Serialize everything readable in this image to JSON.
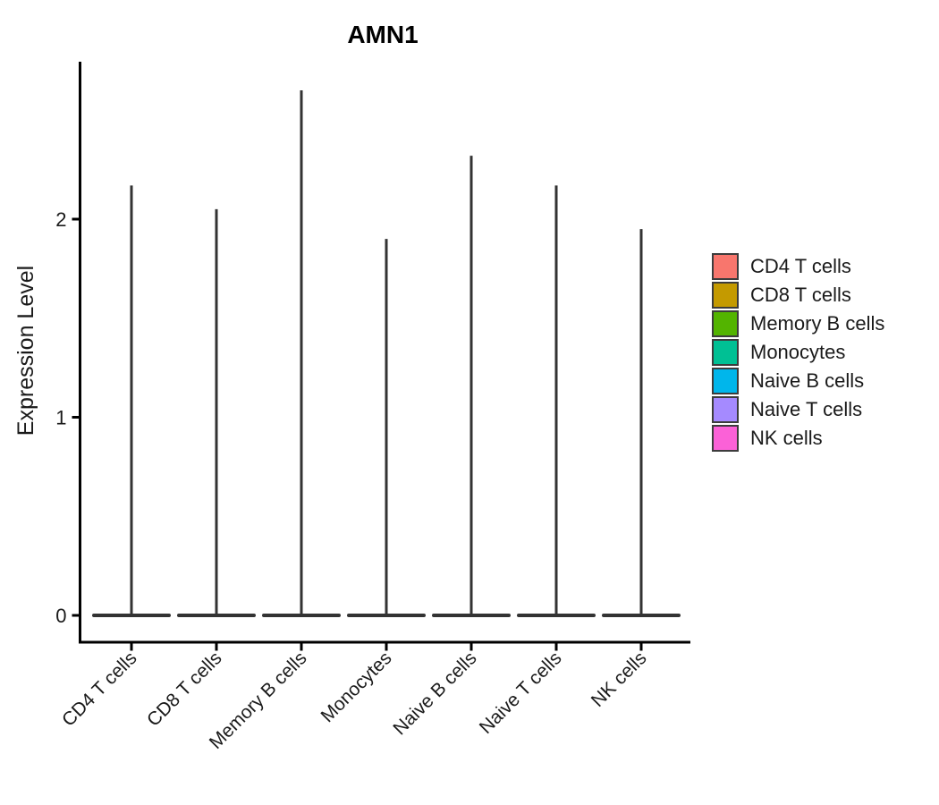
{
  "chart_data": {
    "type": "violin",
    "title": "AMN1",
    "xlabel": "",
    "ylabel": "Expression Level",
    "ylim": [
      -0.14,
      2.79
    ],
    "yticks": [
      0,
      1,
      2
    ],
    "baseline_value": 0,
    "categories": [
      "CD4 T cells",
      "CD8 T cells",
      "Memory B cells",
      "Monocytes",
      "Naive B cells",
      "Naive T cells",
      "NK cells"
    ],
    "series": [
      {
        "name": "CD4 T cells",
        "color": "#F8766D",
        "max_expression": 2.17
      },
      {
        "name": "CD8 T cells",
        "color": "#C49A00",
        "max_expression": 2.05
      },
      {
        "name": "Memory B cells",
        "color": "#53B400",
        "max_expression": 2.65
      },
      {
        "name": "Monocytes",
        "color": "#00C094",
        "max_expression": 1.9
      },
      {
        "name": "Naive B cells",
        "color": "#00B6EB",
        "max_expression": 2.32
      },
      {
        "name": "Naive T cells",
        "color": "#A58AFF",
        "max_expression": 2.17
      },
      {
        "name": "NK cells",
        "color": "#FB61D7",
        "max_expression": 1.95
      }
    ],
    "legend_position": "right",
    "grid": false,
    "axis_color": "#000000",
    "outline_color": "#333333",
    "text_color": "#1a1a1a"
  }
}
